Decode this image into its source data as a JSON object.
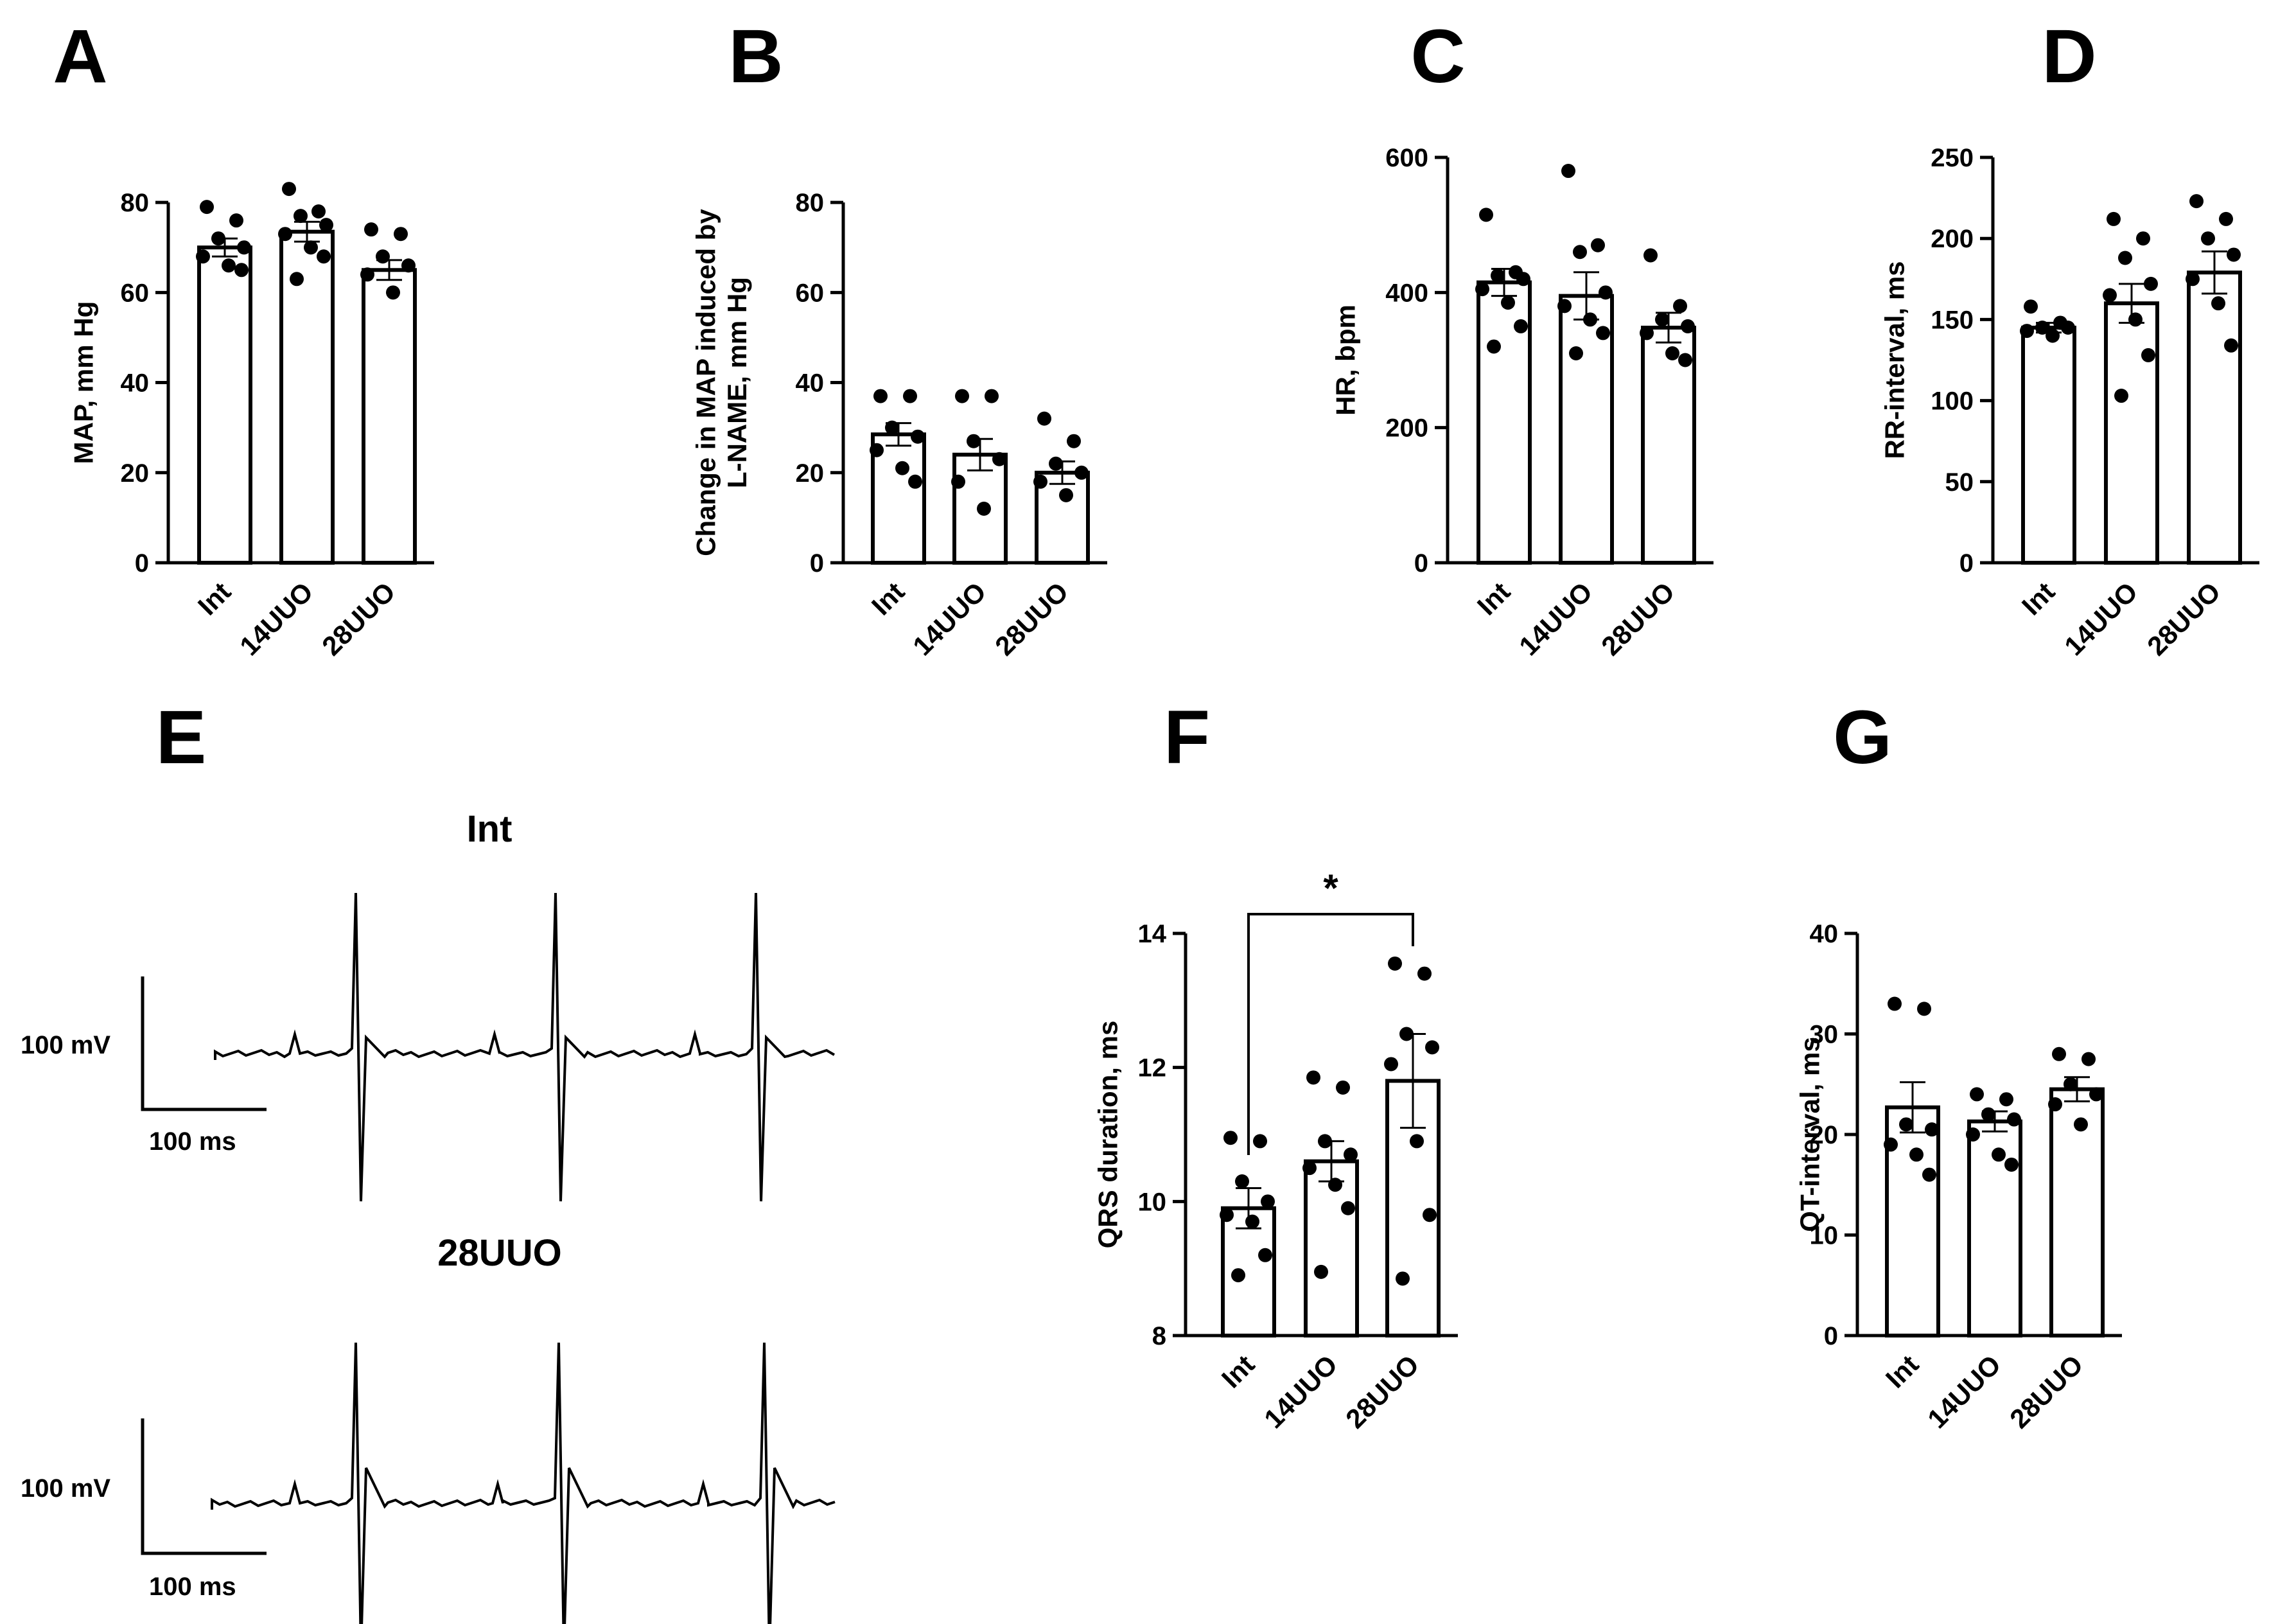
{
  "categories": [
    "Int",
    "14UUO",
    "28UUO"
  ],
  "chart_data": [
    {
      "panel": "A",
      "type": "bar",
      "categories": [
        "Int",
        "14UUO",
        "28UUO"
      ],
      "ylabel": [
        "MAP, mm Hg"
      ],
      "ylim": [
        0,
        90
      ],
      "yticks": [
        0,
        20,
        40,
        60,
        80
      ],
      "values": [
        70,
        73.5,
        65
      ],
      "sem": [
        2,
        2.2,
        2.2
      ],
      "points": [
        [
          79,
          76,
          72,
          70,
          68,
          66,
          65
        ],
        [
          83,
          78,
          77,
          75,
          73,
          70,
          68,
          63
        ],
        [
          74,
          73,
          68,
          66,
          64,
          60
        ]
      ]
    },
    {
      "panel": "B",
      "type": "bar",
      "categories": [
        "Int",
        "14UUO",
        "28UUO"
      ],
      "ylabel": [
        "Change in MAP induced by",
        "L-NAME, mm Hg"
      ],
      "ylim": [
        0,
        90
      ],
      "yticks": [
        0,
        20,
        40,
        60,
        80
      ],
      "values": [
        28.5,
        24,
        20
      ],
      "sem": [
        2.5,
        3.5,
        2.5
      ],
      "points": [
        [
          37,
          37,
          30,
          28,
          25,
          21,
          18
        ],
        [
          37,
          37,
          27,
          23,
          18,
          12
        ],
        [
          32,
          27,
          22,
          20,
          18,
          15
        ]
      ]
    },
    {
      "panel": "C",
      "type": "bar",
      "categories": [
        "Int",
        "14UUO",
        "28UUO"
      ],
      "ylabel": [
        "HR, bpm"
      ],
      "ylim": [
        0,
        600
      ],
      "yticks": [
        0,
        200,
        400,
        600
      ],
      "values": [
        415,
        395,
        348
      ],
      "sem": [
        20,
        35,
        22
      ],
      "points": [
        [
          515,
          430,
          425,
          420,
          405,
          385,
          350,
          320
        ],
        [
          580,
          470,
          460,
          400,
          380,
          360,
          340,
          310
        ],
        [
          455,
          380,
          360,
          350,
          340,
          310,
          300
        ]
      ]
    },
    {
      "panel": "D",
      "type": "bar",
      "categories": [
        "Int",
        "14UUO",
        "28UUO"
      ],
      "ylabel": [
        "RR-interval, ms"
      ],
      "ylim": [
        0,
        250
      ],
      "yticks": [
        0,
        50,
        100,
        150,
        200,
        250
      ],
      "values": [
        145,
        160,
        179
      ],
      "sem": [
        3,
        12,
        13
      ],
      "points": [
        [
          158,
          148,
          145,
          145,
          143,
          140
        ],
        [
          212,
          200,
          188,
          172,
          165,
          150,
          128,
          103
        ],
        [
          223,
          212,
          200,
          190,
          175,
          160,
          134
        ]
      ]
    },
    {
      "panel": "F",
      "type": "bar",
      "categories": [
        "Int",
        "14UUO",
        "28UUO"
      ],
      "ylabel": [
        "QRS duration, ms"
      ],
      "ylim": [
        8,
        14
      ],
      "yticks": [
        8,
        10,
        12,
        14
      ],
      "values": [
        9.9,
        10.6,
        11.8
      ],
      "sem": [
        0.3,
        0.3,
        0.7
      ],
      "points": [
        [
          10.95,
          10.9,
          10.3,
          10.0,
          9.8,
          9.7,
          9.2,
          8.9
        ],
        [
          11.85,
          11.7,
          10.9,
          10.7,
          10.5,
          10.25,
          9.9,
          8.95
        ],
        [
          13.55,
          13.4,
          12.5,
          12.3,
          12.05,
          10.9,
          9.8,
          8.85
        ]
      ],
      "significance": {
        "from": "Int",
        "to": "28UUO",
        "label": "*"
      }
    },
    {
      "panel": "G",
      "type": "bar",
      "categories": [
        "Int",
        "14UUO",
        "28UUO"
      ],
      "ylabel": [
        "QT-interval, ms"
      ],
      "ylim": [
        0,
        40
      ],
      "yticks": [
        0,
        10,
        20,
        30,
        40
      ],
      "values": [
        22.7,
        21.3,
        24.5
      ],
      "sem": [
        2.5,
        1,
        1.2
      ],
      "points": [
        [
          33,
          32.5,
          21,
          20.5,
          19,
          18,
          16
        ],
        [
          24,
          23.5,
          22,
          21.5,
          20,
          18,
          17
        ],
        [
          28,
          27.5,
          25,
          24,
          23,
          21
        ]
      ]
    }
  ],
  "ecg": {
    "panel": "E",
    "traces": [
      {
        "title": "Int",
        "scale_v": "100 mV",
        "scale_t": "100 ms"
      },
      {
        "title": "28UUO",
        "scale_v": "100 mV",
        "scale_t": "100 ms"
      }
    ]
  }
}
